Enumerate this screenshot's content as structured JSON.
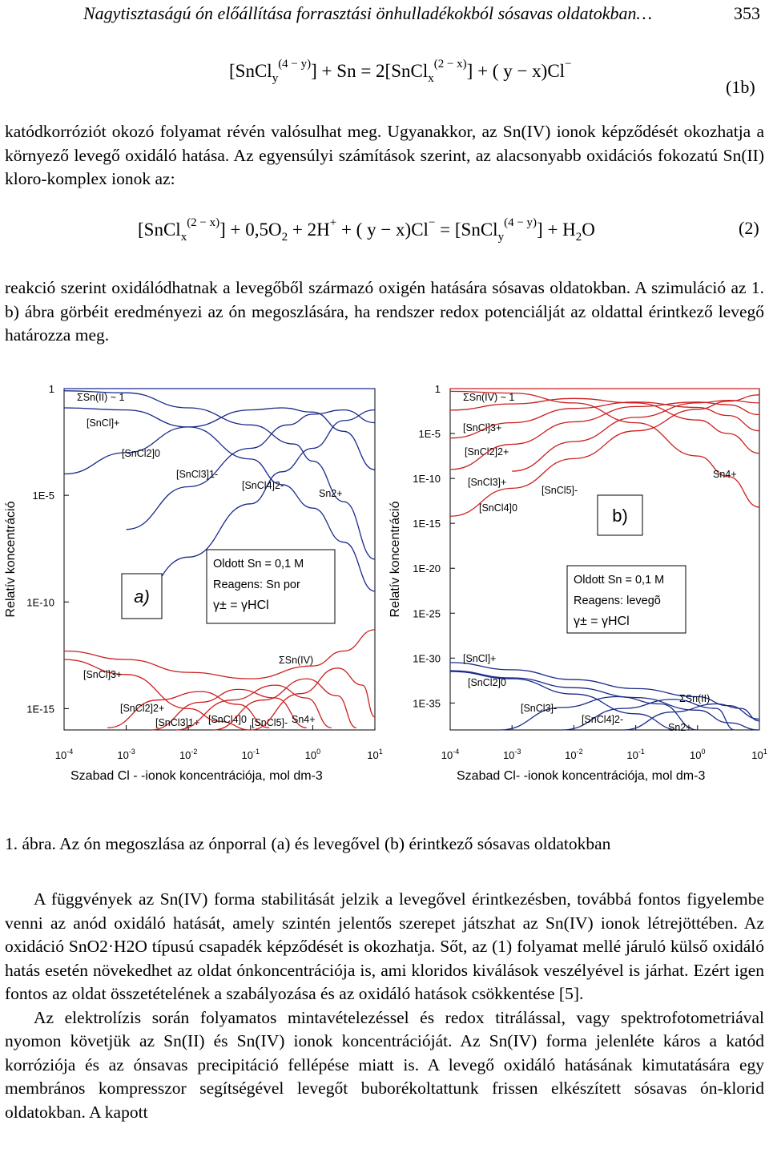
{
  "header": {
    "running_title": "Nagytisztaságú ón előállítása forrasztási önhulladékokból sósavas oldatokban…",
    "page_number": "353"
  },
  "equation_1b": {
    "text": "[SnCl_y]^(4−y) + Sn = 2[SnCl_x]^(2−x) + (y − x)Cl^−",
    "lhs1": "[SnCl",
    "lhs1_sub": "y",
    "lhs1_sup": "(4 − y)",
    "mid1": "] + Sn = 2[SnCl",
    "mid1_sub": "x",
    "mid1_sup": "(2 − x)",
    "rhs": "] + ( y − x)Cl",
    "rhs_sup": "−",
    "number": "(1b)"
  },
  "paragraph_1": "katódkorróziót okozó folyamat révén valósulhat meg. Ugyanakkor, az Sn(IV) ionok képződését okozhatja a környező levegő oxidáló hatása. Az egyensúlyi számítások szerint, az alacsonyabb oxidációs fokozatú Sn(II) kloro-komplex ionok az:",
  "equation_2": {
    "p1": "[SnCl",
    "p1_sub": "x",
    "p1_sup": "(2 − x)",
    "p2": "] + 0,5O",
    "p2_sub": "2",
    "p3": " + 2H",
    "p3_sup": "+",
    "p4": " + ( y − x)Cl",
    "p4_sup": "−",
    "p5": " = [SnCl",
    "p5_sub": "y",
    "p5_sup": "(4 − y)",
    "p6": "] + H",
    "p6_sub": "2",
    "p7": "O",
    "number": "(2)"
  },
  "paragraph_2": "reakció szerint oxidálódhatnak a levegőből származó oxigén hatására sósavas oldatokban. A szimuláció az 1. b) ábra görbéit eredményezi az ón megoszlására, ha rendszer redox potenciálját az oldattal érintkező levegő határozza meg.",
  "chart_data": [
    {
      "type": "line",
      "panel_label": "a)",
      "ylabel": "Relatív koncentráció",
      "xlabel": "Szabad Cl - -ionok koncentrációja, mol dm-3",
      "x_ticks": [
        "10-4",
        "10-3",
        "10-2",
        "10-1",
        "100",
        "101"
      ],
      "y_ticks": [
        "1",
        "1E-5",
        "1E-10",
        "1E-15"
      ],
      "x_scale": "log",
      "y_scale": "log",
      "xlim": [
        0.0001,
        10
      ],
      "ylim_log10": [
        -16,
        0
      ],
      "info_box": [
        "Oldott Sn = 0,1 M",
        "Reagens: Sn por",
        "γ± = γHCl"
      ],
      "series": [
        {
          "name": "ΣSn(II) ~ 1",
          "color": "#1a2a8a",
          "x_log10": [
            -4,
            1
          ],
          "y_log10": [
            0,
            0
          ]
        },
        {
          "name": "[SnCl]+",
          "color": "#1a2a8a",
          "x_log10": [
            -4,
            -3,
            -2,
            -1,
            -0.3,
            0,
            0.5,
            1
          ],
          "y_log10": [
            -0.1,
            -0.2,
            -0.9,
            -1.7,
            -2.6,
            -3.4,
            -5.3,
            -8.0
          ]
        },
        {
          "name": "[SnCl2]0",
          "color": "#1a2a8a",
          "x_log10": [
            -4,
            -3,
            -2,
            -1,
            -0.5,
            0,
            0.5,
            1
          ],
          "y_log10": [
            -4.0,
            -3.0,
            -1.8,
            -1.0,
            -0.9,
            -1.1,
            -2.0,
            -3.8
          ]
        },
        {
          "name": "[SnCl3]1-",
          "color": "#1a2a8a",
          "x_log10": [
            -3,
            -2,
            -1,
            -0.4,
            0,
            0.5,
            1
          ],
          "y_log10": [
            -6.6,
            -4.6,
            -2.8,
            -1.7,
            -1.2,
            -1.0,
            -1.6
          ]
        },
        {
          "name": "[SnCl4]2-",
          "color": "#1a2a8a",
          "x_log10": [
            -3,
            -2,
            -1,
            -0.5,
            0,
            0.5,
            1
          ],
          "y_log10": [
            -10.4,
            -7.9,
            -5.4,
            -3.9,
            -2.8,
            -1.5,
            -1.0
          ]
        },
        {
          "name": "Sn2+",
          "color": "#1a2a8a",
          "x_log10": [
            -4,
            -3,
            -2,
            -1,
            -0.5,
            0,
            0.5,
            1
          ],
          "y_log10": [
            -0.9,
            -1.0,
            -1.8,
            -3.3,
            -4.5,
            -5.6,
            -7.2,
            -9.5
          ]
        },
        {
          "name": "ΣSn(IV)",
          "color": "#cc1f1f",
          "x_log10": [
            -4,
            -3,
            -2,
            -1,
            0,
            0.5,
            1
          ],
          "y_log10": [
            -12.3,
            -12.7,
            -13.3,
            -13.6,
            -13.0,
            -12.3,
            -11.3
          ]
        },
        {
          "name": "[SnCl]3+",
          "color": "#cc1f1f",
          "x_log10": [
            -4,
            -3,
            -2,
            -1.5,
            -1
          ],
          "y_log10": [
            -12.7,
            -13.4,
            -15.0,
            -15.6,
            -16.0
          ]
        },
        {
          "name": "[SnCl2]2+",
          "color": "#cc1f1f",
          "x_log10": [
            -3.3,
            -2.5,
            -1.8,
            -1.2,
            -0.7
          ],
          "y_log10": [
            -15.9,
            -14.6,
            -14.2,
            -14.8,
            -15.9
          ]
        },
        {
          "name": "[SnCl3]1+",
          "color": "#cc1f1f",
          "x_log10": [
            -2.6,
            -1.8,
            -1.2,
            -0.6,
            -0.1
          ],
          "y_log10": [
            -16.0,
            -14.7,
            -14.1,
            -14.5,
            -15.9
          ]
        },
        {
          "name": "[SnCl4]0",
          "color": "#cc1f1f",
          "x_log10": [
            -2.2,
            -1.3,
            -0.6,
            -0.1,
            0.3
          ],
          "y_log10": [
            -16.0,
            -14.6,
            -13.9,
            -14.5,
            -15.9
          ]
        },
        {
          "name": "[SnCl5]-",
          "color": "#cc1f1f",
          "x_log10": [
            -1.6,
            -0.8,
            -0.1,
            0.4,
            0.7
          ],
          "y_log10": [
            -16.0,
            -14.6,
            -13.6,
            -14.4,
            -15.9
          ]
        },
        {
          "name": "Sn4+",
          "color": "#cc1f1f",
          "x_log10": [
            -1,
            -0.2,
            0.4,
            0.8,
            1
          ],
          "y_log10": [
            -16.0,
            -14.3,
            -13.1,
            -13.9,
            -15.4
          ]
        }
      ]
    },
    {
      "type": "line",
      "panel_label": "b)",
      "ylabel": "Relatív koncentráció",
      "xlabel": "Szabad Cl- -ionok koncentrációja, mol dm-3",
      "x_ticks": [
        "10-4",
        "10-3",
        "10-2",
        "10-1",
        "100",
        "101"
      ],
      "y_ticks": [
        "1",
        "1E-5",
        "1E-10",
        "1E-15",
        "1E-20",
        "1E-25",
        "1E-30",
        "1E-35"
      ],
      "x_scale": "log",
      "y_scale": "log",
      "xlim": [
        0.0001,
        10
      ],
      "ylim_log10": [
        -38,
        0
      ],
      "info_box": [
        "Oldott Sn = 0,1 M",
        "Reagens: levegõ",
        "γ± = γHCl"
      ],
      "series": [
        {
          "name": "ΣSn(IV) ~ 1",
          "color": "#cc1f1f",
          "x_log10": [
            -4,
            1
          ],
          "y_log10": [
            0,
            0
          ]
        },
        {
          "name": "[SnCl]3+",
          "color": "#cc1f1f",
          "x_log10": [
            -4,
            -3,
            -2,
            -1,
            0,
            0.5,
            1
          ],
          "y_log10": [
            -0.3,
            -0.5,
            -1.6,
            -3.8,
            -7.5,
            -9.8,
            -13.2
          ]
        },
        {
          "name": "[SnCl2]2+",
          "color": "#cc1f1f",
          "x_log10": [
            -4,
            -3,
            -2,
            -1,
            0,
            0.5,
            1
          ],
          "y_log10": [
            -2.4,
            -1.7,
            -1.1,
            -1.6,
            -3.5,
            -5.0,
            -7.2
          ]
        },
        {
          "name": "[SnCl3]+",
          "color": "#cc1f1f",
          "x_log10": [
            -4,
            -3,
            -2,
            -1,
            0,
            0.5,
            1
          ],
          "y_log10": [
            -5.5,
            -3.8,
            -2.2,
            -1.5,
            -2.1,
            -3.0,
            -4.7
          ]
        },
        {
          "name": "[SnCl4]0",
          "color": "#cc1f1f",
          "x_log10": [
            -4,
            -3,
            -2,
            -1,
            0,
            0.5,
            1
          ],
          "y_log10": [
            -9.0,
            -6.2,
            -3.7,
            -2.0,
            -1.5,
            -1.8,
            -2.9
          ]
        },
        {
          "name": "[SnCl5]-",
          "color": "#cc1f1f",
          "x_log10": [
            -3,
            -2,
            -1,
            0,
            0.5,
            1
          ],
          "y_log10": [
            -9.2,
            -5.9,
            -3.2,
            -1.6,
            -1.3,
            -1.6
          ]
        },
        {
          "name": "Sn4+",
          "color": "#cc1f1f",
          "x_log10": [
            -4,
            -3,
            -2,
            -1,
            0,
            0.5,
            1
          ],
          "y_log10": [
            -14.2,
            -11.1,
            -7.8,
            -4.7,
            -2.3,
            -1.4,
            -0.7
          ]
        },
        {
          "name": "ΣSn(II)",
          "color": "#1a2a8a",
          "x_log10": [
            -4,
            -3,
            -2,
            -1,
            0,
            0.5,
            1
          ],
          "y_log10": [
            -30.5,
            -31.3,
            -32.4,
            -33.4,
            -34.3,
            -35.3,
            -36.8
          ]
        },
        {
          "name": "[SnCl]+",
          "color": "#1a2a8a",
          "x_log10": [
            -4,
            -3,
            -2,
            -1,
            -0.3
          ],
          "y_log10": [
            -31.5,
            -32.3,
            -34.0,
            -36.2,
            -38.0
          ]
        },
        {
          "name": "[SnCl2]0",
          "color": "#1a2a8a",
          "x_log10": [
            -3.2,
            -2.2,
            -1.3,
            -0.6,
            0
          ],
          "y_log10": [
            -38.0,
            -35.5,
            -34.3,
            -35.1,
            -38.0
          ]
        },
        {
          "name": "[SnCl3]-",
          "color": "#1a2a8a",
          "x_log10": [
            -2.2,
            -1.2,
            -0.4,
            0.3,
            0.6
          ],
          "y_log10": [
            -38.0,
            -35.6,
            -34.6,
            -35.6,
            -38.0
          ]
        },
        {
          "name": "[SnCl4]2-",
          "color": "#1a2a8a",
          "x_log10": [
            -1.2,
            -0.4,
            0.3,
            0.7,
            1
          ],
          "y_log10": [
            -38.0,
            -36.0,
            -35.1,
            -35.6,
            -37.0
          ]
        },
        {
          "name": "Sn2+",
          "color": "#1a2a8a",
          "x_log10": [
            -4,
            -3,
            -2,
            -1,
            0,
            0.5,
            1
          ],
          "y_log10": [
            -31.4,
            -32.2,
            -33.3,
            -34.4,
            -35.8,
            -37.2,
            -38.0
          ]
        }
      ]
    }
  ],
  "caption": {
    "label": "1. ábra.",
    "text": " Az ón megoszlása az ónporral (a) és levegővel (b) érintkező sósavas oldatokban"
  },
  "paragraph_3": "A függvények az Sn(IV) forma stabilitását jelzik a levegővel érintkezésben, továbbá fontos figyelembe venni az anód oxidáló hatását, amely szintén jelentős szerepet játszhat az Sn(IV) ionok létrejöttében. Az oxidáció SnO2·H2O típusú csapadék képződését is okozhatja. Sőt, az (1) folyamat mellé járuló külső oxidáló hatás esetén növekedhet az oldat ónkoncentrációja is, ami kloridos kiválások veszélyével is járhat. Ezért igen fontos az oldat összetételének a szabályozása és az oxidáló hatások csökkentése [5].",
  "paragraph_4": "Az elektrolízis során folyamatos mintavételezéssel és redox titrálással, vagy spektrofotometriával nyomon követjük az Sn(II) és Sn(IV) ionok koncentrációját. Az Sn(IV) forma jelenléte káros a katód korróziója és az ónsavas precipitáció fellépése miatt is. A levegő oxidáló hatásának kimutatására egy membrános kompresszor segítségével levegőt buborékoltattunk frissen elkészített sósavas ón-klorid oldatokban. A kapott"
}
